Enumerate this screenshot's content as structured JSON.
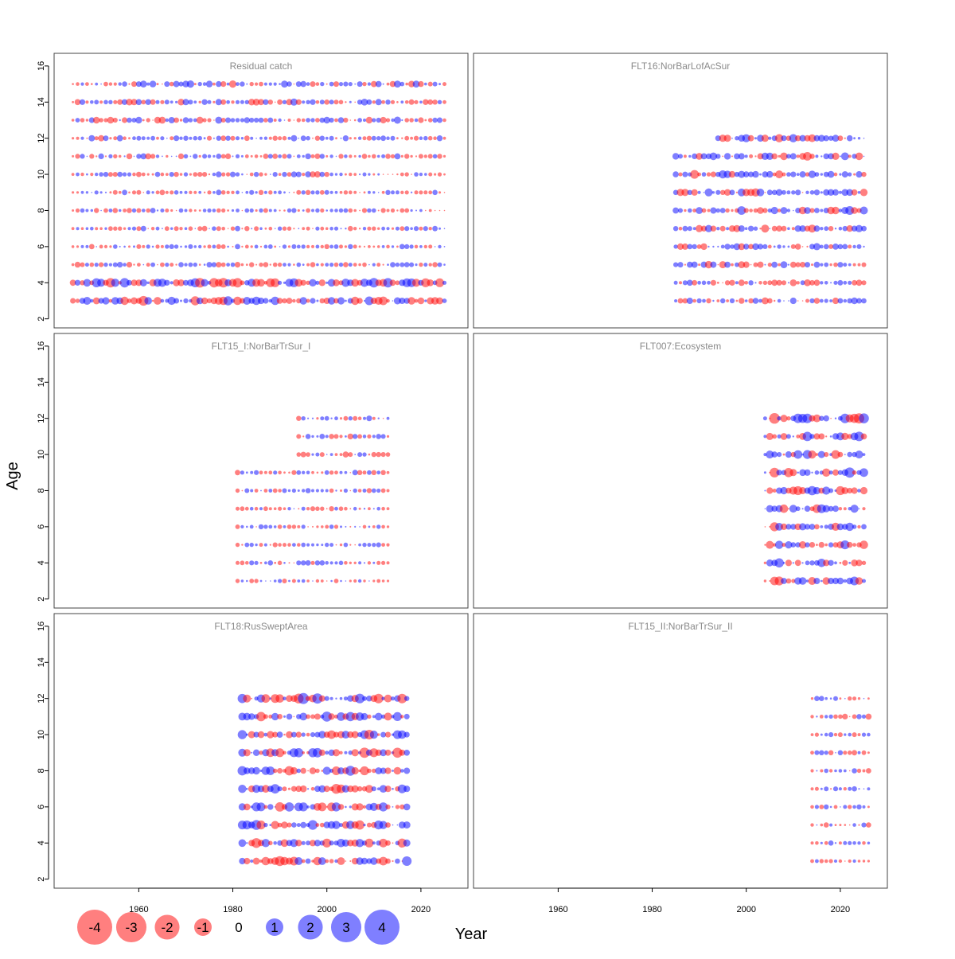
{
  "chart_data": {
    "type": "scatter",
    "subtype": "bubble residual plot",
    "xlabel": "Year",
    "ylabel": "Age",
    "xlim": [
      1942,
      2030
    ],
    "ylim": [
      1.5,
      16.7
    ],
    "x_ticks": [
      1960,
      1980,
      2000,
      2020
    ],
    "y_ticks": [
      2,
      4,
      6,
      8,
      10,
      12,
      14,
      16
    ],
    "colors": {
      "positive": "#0000ff",
      "negative": "#ff0000",
      "opacity": 0.5
    },
    "legend": {
      "values": [
        -4,
        -3,
        -2,
        -1,
        0,
        1,
        2,
        3,
        4
      ],
      "labels": [
        "-4",
        "-3",
        "-2",
        "-1",
        "0",
        "1",
        "2",
        "3",
        "4"
      ],
      "placement": "bottom-left"
    },
    "panels": [
      {
        "title": "Residual catch",
        "years": [
          1946,
          2025
        ],
        "ages": [
          3,
          15
        ],
        "grid": "2x3 position top-left",
        "magnitude_note": "ages 3-4 large bubbles, ages 5-11 small",
        "age_ranges": [
          {
            "age": 3,
            "from": 1946,
            "to": 2025,
            "scale": 1.9
          },
          {
            "age": 4,
            "from": 1946,
            "to": 2025,
            "scale": 2.1
          },
          {
            "age": 5,
            "from": 1946,
            "to": 2025,
            "scale": 0.7
          },
          {
            "age": 6,
            "from": 1946,
            "to": 2025,
            "scale": 0.6
          },
          {
            "age": 7,
            "from": 1946,
            "to": 2025,
            "scale": 0.6
          },
          {
            "age": 8,
            "from": 1946,
            "to": 2025,
            "scale": 0.6
          },
          {
            "age": 9,
            "from": 1946,
            "to": 2025,
            "scale": 0.6
          },
          {
            "age": 10,
            "from": 1946,
            "to": 2025,
            "scale": 0.8
          },
          {
            "age": 11,
            "from": 1946,
            "to": 2025,
            "scale": 0.8
          },
          {
            "age": 12,
            "from": 1946,
            "to": 2025,
            "scale": 0.9
          },
          {
            "age": 13,
            "from": 1946,
            "to": 2025,
            "scale": 1.1
          },
          {
            "age": 14,
            "from": 1946,
            "to": 2025,
            "scale": 1.1
          },
          {
            "age": 15,
            "from": 1946,
            "to": 2025,
            "scale": 1.1
          }
        ]
      },
      {
        "title": "FLT16:NorBarLofAcSur",
        "age_ranges": [
          {
            "age": 3,
            "from": 1985,
            "to": 2025,
            "scale": 1.0
          },
          {
            "age": 4,
            "from": 1985,
            "to": 2025,
            "scale": 1.1
          },
          {
            "age": 5,
            "from": 1985,
            "to": 2025,
            "scale": 1.3
          },
          {
            "age": 6,
            "from": 1985,
            "to": 2025,
            "scale": 1.3
          },
          {
            "age": 7,
            "from": 1985,
            "to": 2025,
            "scale": 1.4
          },
          {
            "age": 8,
            "from": 1985,
            "to": 2025,
            "scale": 1.6
          },
          {
            "age": 9,
            "from": 1985,
            "to": 2025,
            "scale": 1.6
          },
          {
            "age": 10,
            "from": 1985,
            "to": 2025,
            "scale": 1.6
          },
          {
            "age": 11,
            "from": 1985,
            "to": 2025,
            "scale": 1.5
          },
          {
            "age": 12,
            "from": 1994,
            "to": 2025,
            "scale": 1.5
          }
        ]
      },
      {
        "title": "FLT15_I:NorBarTrSur_I",
        "age_ranges": [
          {
            "age": 3,
            "from": 1981,
            "to": 2013,
            "scale": 0.45
          },
          {
            "age": 4,
            "from": 1981,
            "to": 2013,
            "scale": 0.6
          },
          {
            "age": 5,
            "from": 1981,
            "to": 2013,
            "scale": 0.55
          },
          {
            "age": 6,
            "from": 1981,
            "to": 2013,
            "scale": 0.55
          },
          {
            "age": 7,
            "from": 1981,
            "to": 2013,
            "scale": 0.6
          },
          {
            "age": 8,
            "from": 1981,
            "to": 2013,
            "scale": 0.6
          },
          {
            "age": 9,
            "from": 1981,
            "to": 2013,
            "scale": 0.8
          },
          {
            "age": 10,
            "from": 1994,
            "to": 2013,
            "scale": 0.8
          },
          {
            "age": 11,
            "from": 1994,
            "to": 2013,
            "scale": 0.8
          },
          {
            "age": 12,
            "from": 1994,
            "to": 2013,
            "scale": 0.8
          }
        ]
      },
      {
        "title": "FLT007:Ecosystem",
        "age_ranges": [
          {
            "age": 3,
            "from": 2004,
            "to": 2025,
            "scale": 1.7
          },
          {
            "age": 4,
            "from": 2004,
            "to": 2025,
            "scale": 1.8
          },
          {
            "age": 5,
            "from": 2004,
            "to": 2025,
            "scale": 1.7
          },
          {
            "age": 6,
            "from": 2004,
            "to": 2025,
            "scale": 1.8
          },
          {
            "age": 7,
            "from": 2004,
            "to": 2025,
            "scale": 1.8
          },
          {
            "age": 8,
            "from": 2004,
            "to": 2025,
            "scale": 1.9
          },
          {
            "age": 9,
            "from": 2004,
            "to": 2025,
            "scale": 2.0
          },
          {
            "age": 10,
            "from": 2004,
            "to": 2025,
            "scale": 2.0
          },
          {
            "age": 11,
            "from": 2004,
            "to": 2025,
            "scale": 2.2
          },
          {
            "age": 12,
            "from": 2004,
            "to": 2025,
            "scale": 2.3
          }
        ]
      },
      {
        "title": "FLT18:RusSweptArea",
        "age_ranges": [
          {
            "age": 3,
            "from": 1982,
            "to": 2017,
            "scale": 1.9
          },
          {
            "age": 4,
            "from": 1982,
            "to": 2017,
            "scale": 2.0
          },
          {
            "age": 5,
            "from": 1982,
            "to": 2017,
            "scale": 2.1
          },
          {
            "age": 6,
            "from": 1982,
            "to": 2017,
            "scale": 2.0
          },
          {
            "age": 7,
            "from": 1982,
            "to": 2017,
            "scale": 2.0
          },
          {
            "age": 8,
            "from": 1982,
            "to": 2017,
            "scale": 2.1
          },
          {
            "age": 9,
            "from": 1982,
            "to": 2017,
            "scale": 2.1
          },
          {
            "age": 10,
            "from": 1982,
            "to": 2017,
            "scale": 2.1
          },
          {
            "age": 11,
            "from": 1982,
            "to": 2017,
            "scale": 2.3
          },
          {
            "age": 12,
            "from": 1982,
            "to": 2017,
            "scale": 2.4
          }
        ]
      },
      {
        "title": "FLT15_II:NorBarTrSur_II",
        "age_ranges": [
          {
            "age": 3,
            "from": 2014,
            "to": 2026,
            "scale": 0.5
          },
          {
            "age": 4,
            "from": 2014,
            "to": 2026,
            "scale": 0.55
          },
          {
            "age": 5,
            "from": 2014,
            "to": 2026,
            "scale": 0.55
          },
          {
            "age": 6,
            "from": 2014,
            "to": 2026,
            "scale": 0.55
          },
          {
            "age": 7,
            "from": 2014,
            "to": 2026,
            "scale": 0.6
          },
          {
            "age": 8,
            "from": 2014,
            "to": 2026,
            "scale": 0.6
          },
          {
            "age": 9,
            "from": 2014,
            "to": 2026,
            "scale": 0.7
          },
          {
            "age": 10,
            "from": 2014,
            "to": 2026,
            "scale": 0.65
          },
          {
            "age": 11,
            "from": 2014,
            "to": 2026,
            "scale": 0.8
          },
          {
            "age": 12,
            "from": 2014,
            "to": 2026,
            "scale": 0.8
          }
        ]
      }
    ]
  }
}
